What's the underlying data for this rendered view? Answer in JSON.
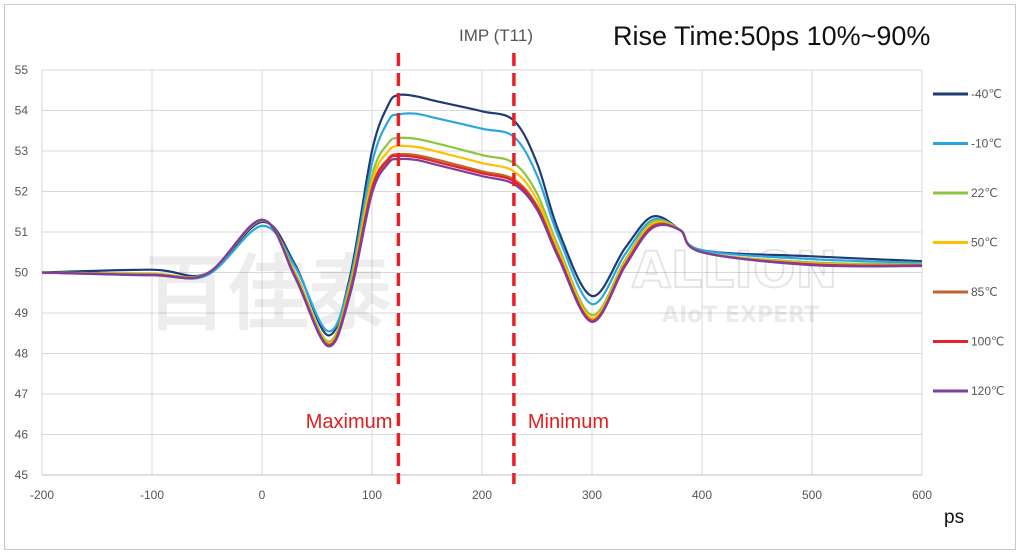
{
  "watermark": {
    "chinese": "百佳泰",
    "brand": "ALLION",
    "sub": "AIoT EXPERT"
  },
  "chart_data": {
    "type": "line",
    "title": "Rise Time:50ps 10%~90%",
    "subtitle": "IMP (T11)",
    "xlabel": "ps",
    "ylabel": "",
    "xlim": [
      -200,
      600
    ],
    "ylim": [
      45,
      55
    ],
    "xticks": [
      -200,
      -100,
      0,
      100,
      200,
      300,
      400,
      500,
      600
    ],
    "yticks": [
      45,
      46,
      47,
      48,
      49,
      50,
      51,
      52,
      53,
      54,
      55
    ],
    "grid": true,
    "legend_position": "right",
    "annotations": [
      {
        "label": "Maximum",
        "x": 124
      },
      {
        "label": "Minimum",
        "x": 229
      }
    ],
    "series": [
      {
        "name": "-40℃",
        "color": "#1f3b73",
        "x": [
          -200,
          -100,
          -50,
          0,
          30,
          60,
          80,
          100,
          115,
          124,
          140,
          160,
          200,
          229,
          250,
          270,
          300,
          330,
          355,
          380,
          400,
          500,
          600
        ],
        "y": [
          50.0,
          50.07,
          49.98,
          51.25,
          50.2,
          48.45,
          49.9,
          53.0,
          54.15,
          54.38,
          54.35,
          54.22,
          53.98,
          53.75,
          52.7,
          51.0,
          49.42,
          50.6,
          51.38,
          51.05,
          50.55,
          50.4,
          50.28
        ]
      },
      {
        "name": "-10℃",
        "color": "#2aa6e0",
        "x": [
          -200,
          -100,
          -50,
          0,
          30,
          60,
          80,
          100,
          115,
          124,
          140,
          160,
          200,
          229,
          250,
          270,
          300,
          330,
          355,
          380,
          400,
          500,
          600
        ],
        "y": [
          50.0,
          49.96,
          49.93,
          51.15,
          50.15,
          48.55,
          49.8,
          52.7,
          53.75,
          53.9,
          53.92,
          53.8,
          53.55,
          53.35,
          52.4,
          50.85,
          49.22,
          50.45,
          51.3,
          51.05,
          50.55,
          50.33,
          50.24
        ]
      },
      {
        "name": "22℃",
        "color": "#8cc63f",
        "x": [
          -200,
          -100,
          -50,
          0,
          30,
          60,
          80,
          100,
          115,
          124,
          140,
          160,
          200,
          229,
          250,
          270,
          300,
          330,
          355,
          380,
          400,
          500,
          600
        ],
        "y": [
          50.0,
          49.97,
          49.98,
          51.28,
          50.0,
          48.3,
          49.7,
          52.4,
          53.2,
          53.32,
          53.3,
          53.18,
          52.9,
          52.7,
          51.95,
          50.6,
          48.95,
          50.3,
          51.25,
          51.05,
          50.5,
          50.25,
          50.2
        ]
      },
      {
        "name": "50℃",
        "color": "#ffc000",
        "x": [
          -200,
          -100,
          -50,
          0,
          30,
          60,
          80,
          100,
          115,
          124,
          140,
          160,
          200,
          229,
          250,
          270,
          300,
          330,
          355,
          380,
          400,
          500,
          600
        ],
        "y": [
          50.0,
          49.95,
          49.97,
          51.3,
          49.95,
          48.25,
          49.6,
          52.25,
          53.0,
          53.12,
          53.1,
          52.98,
          52.7,
          52.5,
          51.8,
          50.5,
          48.88,
          50.25,
          51.2,
          51.05,
          50.5,
          50.22,
          50.18
        ]
      },
      {
        "name": "85℃",
        "color": "#c0652a",
        "x": [
          -200,
          -100,
          -50,
          0,
          30,
          60,
          80,
          100,
          115,
          124,
          140,
          160,
          200,
          229,
          250,
          270,
          300,
          330,
          355,
          380,
          400,
          500,
          600
        ],
        "y": [
          50.0,
          49.94,
          49.97,
          51.3,
          49.92,
          48.22,
          49.55,
          52.1,
          52.82,
          52.92,
          52.9,
          52.78,
          52.5,
          52.3,
          51.65,
          50.4,
          48.82,
          50.2,
          51.15,
          51.05,
          50.5,
          50.2,
          50.18
        ]
      },
      {
        "name": "100℃",
        "color": "#e8202a",
        "x": [
          -200,
          -100,
          -50,
          0,
          30,
          60,
          80,
          100,
          115,
          124,
          140,
          160,
          200,
          229,
          250,
          270,
          300,
          330,
          355,
          380,
          400,
          500,
          600
        ],
        "y": [
          50.0,
          49.94,
          49.97,
          51.3,
          49.9,
          48.2,
          49.5,
          52.05,
          52.78,
          52.88,
          52.85,
          52.72,
          52.45,
          52.25,
          51.6,
          50.37,
          48.8,
          50.18,
          51.12,
          51.05,
          50.5,
          50.2,
          50.17
        ]
      },
      {
        "name": "120℃",
        "color": "#7a3fa0",
        "x": [
          -200,
          -100,
          -50,
          0,
          30,
          60,
          80,
          100,
          115,
          124,
          140,
          160,
          200,
          229,
          250,
          270,
          300,
          330,
          355,
          380,
          400,
          500,
          600
        ],
        "y": [
          50.0,
          49.93,
          49.97,
          51.3,
          49.88,
          48.18,
          49.45,
          51.95,
          52.7,
          52.8,
          52.78,
          52.65,
          52.38,
          52.18,
          51.55,
          50.33,
          48.78,
          50.15,
          51.1,
          51.05,
          50.5,
          50.18,
          50.16
        ]
      }
    ]
  }
}
